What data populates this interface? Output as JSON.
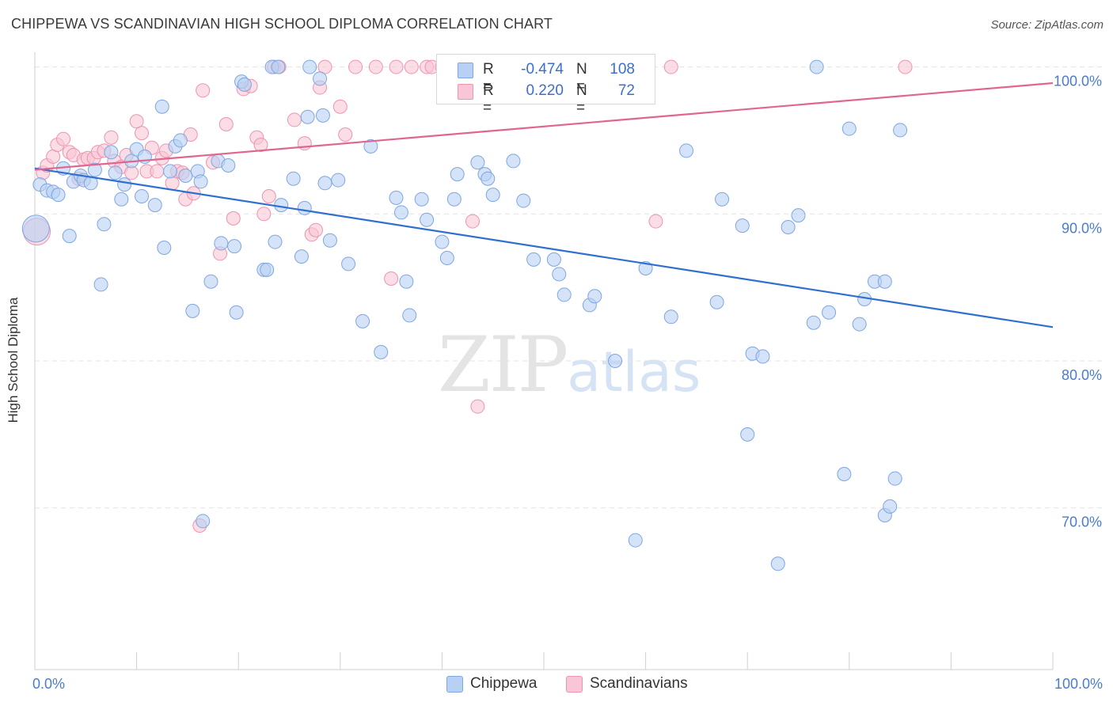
{
  "title": "CHIPPEWA VS SCANDINAVIAN HIGH SCHOOL DIPLOMA CORRELATION CHART",
  "source": "Source: ZipAtlas.com",
  "watermark": {
    "zip": "ZIP",
    "atlas": "atlas"
  },
  "legend": {
    "rows": [
      {
        "r_label": "R =",
        "r_value": "-0.474",
        "n_label": "N =",
        "n_value": "108"
      },
      {
        "r_label": "R =",
        "r_value": "0.220",
        "n_label": "N =",
        "n_value": "72"
      }
    ]
  },
  "colors": {
    "blue_fill": "#b8d0f3",
    "blue_stroke": "#7ea6e0",
    "blue_line": "#2f6fd0",
    "pink_fill": "#f8c6d6",
    "pink_stroke": "#ee93b0",
    "pink_line": "#e06690",
    "tick_text": "#4a7bd0",
    "grid": "#e3e3e3"
  },
  "chart_data": {
    "type": "scatter",
    "title": "CHIPPEWA VS SCANDINAVIAN HIGH SCHOOL DIPLOMA CORRELATION CHART",
    "xlabel": "",
    "ylabel": "High School Diploma",
    "xlim": [
      0,
      100
    ],
    "ylim": [
      59,
      101
    ],
    "y_ticks": [
      {
        "value": 100,
        "label": "100.0%"
      },
      {
        "value": 90,
        "label": "90.0%"
      },
      {
        "value": 80,
        "label": "80.0%"
      },
      {
        "value": 70,
        "label": "70.0%"
      }
    ],
    "x_tick_labels": [
      {
        "value": 0,
        "label": "0.0%"
      },
      {
        "value": 100,
        "label": "100.0%"
      }
    ],
    "grid": true,
    "legend_position": "top-center",
    "series": [
      {
        "name": "Chippewa",
        "trend": {
          "x": [
            0,
            100
          ],
          "y": [
            93.1,
            82.3
          ]
        },
        "points": [
          [
            0.1,
            89.0
          ],
          [
            0.5,
            92.0
          ],
          [
            1.2,
            91.6
          ],
          [
            1.8,
            91.5
          ],
          [
            2.3,
            91.3
          ],
          [
            2.8,
            93.1
          ],
          [
            3.4,
            88.5
          ],
          [
            3.8,
            92.2
          ],
          [
            4.5,
            92.6
          ],
          [
            4.8,
            92.3
          ],
          [
            5.5,
            92.1
          ],
          [
            5.9,
            93.0
          ],
          [
            6.5,
            85.2
          ],
          [
            6.8,
            89.3
          ],
          [
            7.5,
            94.2
          ],
          [
            7.9,
            92.8
          ],
          [
            8.5,
            91.0
          ],
          [
            8.8,
            92.0
          ],
          [
            9.5,
            93.6
          ],
          [
            10.0,
            94.4
          ],
          [
            10.5,
            91.2
          ],
          [
            10.8,
            93.9
          ],
          [
            11.8,
            90.6
          ],
          [
            12.5,
            97.3
          ],
          [
            12.7,
            87.7
          ],
          [
            13.3,
            92.9
          ],
          [
            13.8,
            94.6
          ],
          [
            14.3,
            95.0
          ],
          [
            14.8,
            92.6
          ],
          [
            15.5,
            83.4
          ],
          [
            16.0,
            92.9
          ],
          [
            16.3,
            92.2
          ],
          [
            16.5,
            69.1
          ],
          [
            17.3,
            85.4
          ],
          [
            18.0,
            93.6
          ],
          [
            18.3,
            88.0
          ],
          [
            19.0,
            93.3
          ],
          [
            19.6,
            87.8
          ],
          [
            19.8,
            83.3
          ],
          [
            20.3,
            99.0
          ],
          [
            20.6,
            98.8
          ],
          [
            22.5,
            86.2
          ],
          [
            22.8,
            86.2
          ],
          [
            23.3,
            100.0
          ],
          [
            23.6,
            88.1
          ],
          [
            23.9,
            100.0
          ],
          [
            24.2,
            90.6
          ],
          [
            25.4,
            92.4
          ],
          [
            26.2,
            87.1
          ],
          [
            26.5,
            90.4
          ],
          [
            26.8,
            96.6
          ],
          [
            27.0,
            100.0
          ],
          [
            28.0,
            99.2
          ],
          [
            28.3,
            96.7
          ],
          [
            28.5,
            92.1
          ],
          [
            29.0,
            88.2
          ],
          [
            29.8,
            92.3
          ],
          [
            30.8,
            86.6
          ],
          [
            32.2,
            82.7
          ],
          [
            33.0,
            94.6
          ],
          [
            34.0,
            80.6
          ],
          [
            35.5,
            91.1
          ],
          [
            36.0,
            90.1
          ],
          [
            36.5,
            85.4
          ],
          [
            36.8,
            83.1
          ],
          [
            38.0,
            91.0
          ],
          [
            38.5,
            89.6
          ],
          [
            40.0,
            88.1
          ],
          [
            40.5,
            87.0
          ],
          [
            41.2,
            91.0
          ],
          [
            41.5,
            92.7
          ],
          [
            43.5,
            93.5
          ],
          [
            44.2,
            92.7
          ],
          [
            44.5,
            92.4
          ],
          [
            45.0,
            91.3
          ],
          [
            47.0,
            93.6
          ],
          [
            48.0,
            90.9
          ],
          [
            49.0,
            86.9
          ],
          [
            51.0,
            86.9
          ],
          [
            51.5,
            85.9
          ],
          [
            52.0,
            84.5
          ],
          [
            54.5,
            83.8
          ],
          [
            55.0,
            84.4
          ],
          [
            57.0,
            80.0
          ],
          [
            59.0,
            67.8
          ],
          [
            60.0,
            86.3
          ],
          [
            62.5,
            83.0
          ],
          [
            64.0,
            94.3
          ],
          [
            67.0,
            84.0
          ],
          [
            67.5,
            91.0
          ],
          [
            69.5,
            89.2
          ],
          [
            70.0,
            75.0
          ],
          [
            70.5,
            80.5
          ],
          [
            71.5,
            80.3
          ],
          [
            73.0,
            66.2
          ],
          [
            74.0,
            89.1
          ],
          [
            75.0,
            89.9
          ],
          [
            76.5,
            82.6
          ],
          [
            76.8,
            100.0
          ],
          [
            78.0,
            83.3
          ],
          [
            79.5,
            72.3
          ],
          [
            80.0,
            95.8
          ],
          [
            81.0,
            82.5
          ],
          [
            81.5,
            84.2
          ],
          [
            82.5,
            85.4
          ],
          [
            83.5,
            85.4
          ],
          [
            83.5,
            69.5
          ],
          [
            84.0,
            70.1
          ],
          [
            84.5,
            72.0
          ],
          [
            85.0,
            95.7
          ]
        ]
      },
      {
        "name": "Scandinavians",
        "trend": {
          "x": [
            0,
            100
          ],
          "y": [
            93.0,
            98.9
          ]
        },
        "points": [
          [
            0.2,
            88.8
          ],
          [
            0.8,
            92.8
          ],
          [
            1.2,
            93.3
          ],
          [
            1.8,
            93.9
          ],
          [
            2.2,
            94.7
          ],
          [
            2.8,
            95.1
          ],
          [
            3.4,
            94.2
          ],
          [
            3.8,
            94.0
          ],
          [
            4.3,
            92.4
          ],
          [
            4.8,
            93.7
          ],
          [
            5.2,
            93.8
          ],
          [
            5.8,
            93.8
          ],
          [
            6.2,
            94.2
          ],
          [
            6.8,
            94.3
          ],
          [
            7.5,
            95.2
          ],
          [
            7.8,
            93.6
          ],
          [
            8.5,
            93.2
          ],
          [
            9.0,
            94.0
          ],
          [
            9.5,
            92.8
          ],
          [
            10.0,
            96.3
          ],
          [
            10.5,
            95.5
          ],
          [
            11.0,
            92.9
          ],
          [
            11.5,
            94.5
          ],
          [
            12.0,
            92.9
          ],
          [
            12.5,
            93.8
          ],
          [
            12.9,
            94.3
          ],
          [
            13.5,
            92.1
          ],
          [
            14.0,
            92.9
          ],
          [
            14.5,
            92.8
          ],
          [
            14.8,
            91.0
          ],
          [
            15.3,
            95.4
          ],
          [
            15.6,
            91.4
          ],
          [
            16.2,
            68.8
          ],
          [
            16.5,
            98.4
          ],
          [
            17.5,
            93.5
          ],
          [
            18.2,
            87.3
          ],
          [
            18.8,
            96.1
          ],
          [
            19.5,
            89.7
          ],
          [
            20.5,
            98.5
          ],
          [
            21.2,
            98.7
          ],
          [
            21.8,
            95.2
          ],
          [
            22.2,
            94.7
          ],
          [
            22.5,
            90.0
          ],
          [
            23.0,
            91.2
          ],
          [
            23.5,
            100.0
          ],
          [
            24.0,
            100.0
          ],
          [
            25.5,
            96.4
          ],
          [
            26.5,
            94.8
          ],
          [
            27.2,
            88.6
          ],
          [
            27.6,
            88.9
          ],
          [
            28.0,
            98.6
          ],
          [
            28.5,
            100.0
          ],
          [
            30.0,
            97.3
          ],
          [
            30.5,
            95.4
          ],
          [
            31.5,
            100.0
          ],
          [
            33.5,
            100.0
          ],
          [
            35.5,
            100.0
          ],
          [
            37.0,
            100.0
          ],
          [
            38.5,
            100.0
          ],
          [
            39.0,
            100.0
          ],
          [
            40.0,
            100.0
          ],
          [
            41.5,
            100.0
          ],
          [
            42.0,
            99.5
          ],
          [
            42.5,
            100.0
          ],
          [
            35.0,
            85.6
          ],
          [
            43.0,
            89.5
          ],
          [
            43.5,
            76.9
          ],
          [
            52.0,
            100.0
          ],
          [
            54.5,
            100.0
          ],
          [
            61.0,
            89.5
          ],
          [
            62.5,
            100.0
          ],
          [
            85.5,
            100.0
          ]
        ]
      }
    ]
  }
}
